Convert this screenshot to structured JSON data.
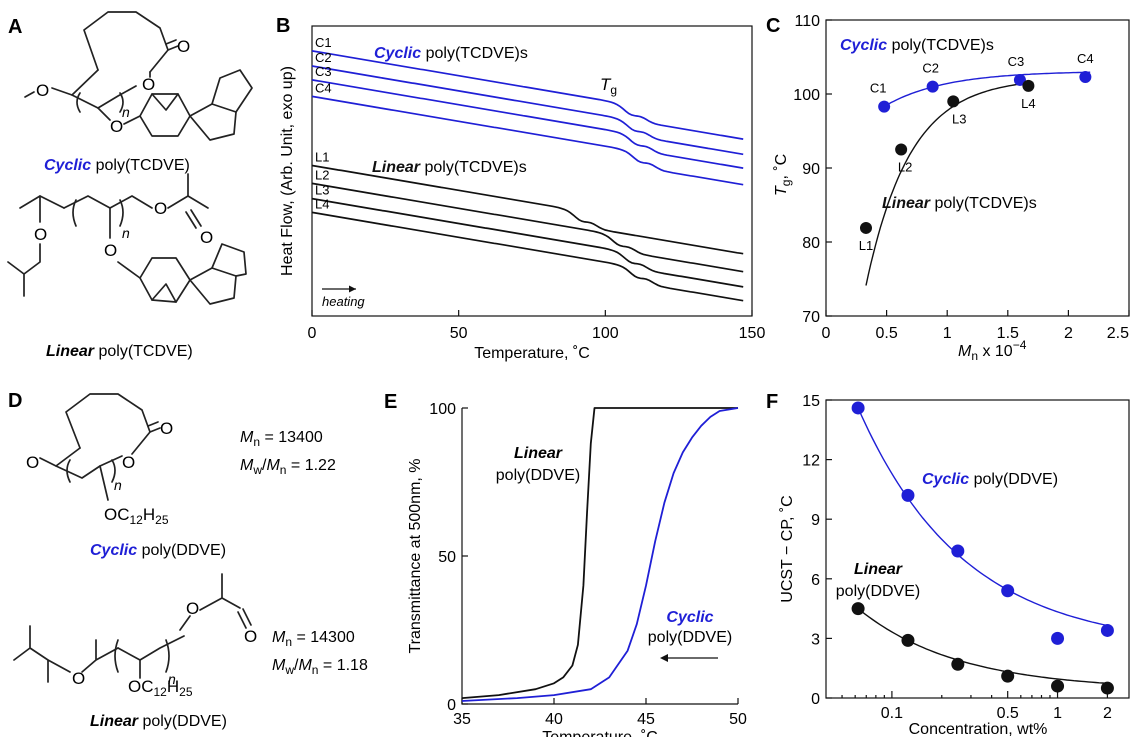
{
  "colors": {
    "cyclic": "#1f1fd6",
    "linear": "#111111",
    "ink": "#111111"
  },
  "panels": {
    "A": {
      "letter": "A",
      "cyclic_name": {
        "prefix": "Cyclic",
        "suffix": " poly(TCDVE)"
      },
      "linear_name": {
        "prefix": "Linear",
        "suffix": " poly(TCDVE)"
      },
      "atoms": {
        "O": "O",
        "n": "n"
      }
    },
    "D": {
      "letter": "D",
      "cyclic_name": {
        "prefix": "Cyclic",
        "suffix": " poly(DDVE)"
      },
      "linear_name": {
        "prefix": "Linear",
        "suffix": " poly(DDVE)"
      },
      "side_chain": {
        "pre": "OC",
        "sub": "12",
        "mid": "H",
        "sub2": "25"
      },
      "cyclic_props": {
        "mn_label": "M",
        "mn_sub": "n",
        "mn_value": " = 13400",
        "mw_label": "M",
        "mw_sub": "w",
        "mw_sep": "/",
        "mw_sub2": "n",
        "mw_value": " = 1.22"
      },
      "linear_props": {
        "mn_label": "M",
        "mn_sub": "n",
        "mn_value": " = 14300",
        "mw_label": "M",
        "mw_sub": "w",
        "mw_sep": "/",
        "mw_sub2": "n",
        "mw_value": " = 1.18"
      }
    }
  },
  "chart_data": [
    {
      "id": "B",
      "type": "line",
      "letter": "B",
      "xlabel": "Temperature, ˚C",
      "ylabel": "Heat Flow, (Arb. Unit, exo up)",
      "xlim": [
        0,
        150
      ],
      "xticks": [
        0,
        50,
        100,
        150
      ],
      "y_ticks_shown": false,
      "annotations": {
        "cyclic_group": {
          "bold": "Cyclic",
          "rest": " poly(TCDVE)s"
        },
        "linear_group": {
          "bold": "Linear",
          "rest": " poly(TCDVE)s"
        },
        "tg_main": "T",
        "tg_sub": "g",
        "heating": "heating"
      },
      "series": [
        {
          "name": "C1",
          "group": "cyclic",
          "y_start": 9.6,
          "tg": 107
        },
        {
          "name": "C2",
          "group": "cyclic",
          "y_start": 9.05,
          "tg": 108
        },
        {
          "name": "C3",
          "group": "cyclic",
          "y_start": 8.55,
          "tg": 109
        },
        {
          "name": "C4",
          "group": "cyclic",
          "y_start": 7.95,
          "tg": 110
        },
        {
          "name": "L1",
          "group": "linear",
          "y_start": 5.45,
          "tg": 90
        },
        {
          "name": "L2",
          "group": "linear",
          "y_start": 4.8,
          "tg": 103
        },
        {
          "name": "L3",
          "group": "linear",
          "y_start": 4.25,
          "tg": 107
        },
        {
          "name": "L4",
          "group": "linear",
          "y_start": 3.75,
          "tg": 109
        }
      ]
    },
    {
      "id": "C",
      "type": "scatter",
      "letter": "C",
      "xlabel_main": "M",
      "xlabel_sub": "n",
      "xlabel_rest": " x 10",
      "xlabel_sup": "−4",
      "ylabel_main": "T",
      "ylabel_sub": "g",
      "ylabel_rest": ", ˚C",
      "xlim": [
        0,
        2.5
      ],
      "ylim": [
        70,
        110
      ],
      "xticks": [
        0,
        0.5,
        1,
        1.5,
        2,
        2.5
      ],
      "xtick_labels": [
        "0",
        "0.5",
        "1",
        "1.5",
        "2",
        "2.5"
      ],
      "yticks": [
        70,
        80,
        90,
        100,
        110
      ],
      "annotations": {
        "cyclic_group": {
          "bold": "Cyclic",
          "rest": " poly(TCDVE)s"
        },
        "linear_group": {
          "bold": "Linear",
          "rest": " poly(TCDVE)s"
        }
      },
      "series": [
        {
          "group": "cyclic",
          "points": [
            {
              "label": "C1",
              "x": 0.48,
              "y": 98.3
            },
            {
              "label": "C2",
              "x": 0.88,
              "y": 101.0
            },
            {
              "label": "C3",
              "x": 1.6,
              "y": 101.9
            },
            {
              "label": "C4",
              "x": 2.14,
              "y": 102.3
            }
          ]
        },
        {
          "group": "linear",
          "points": [
            {
              "label": "L1",
              "x": 0.33,
              "y": 81.9
            },
            {
              "label": "L2",
              "x": 0.62,
              "y": 92.5
            },
            {
              "label": "L3",
              "x": 1.05,
              "y": 99.0
            },
            {
              "label": "L4",
              "x": 1.67,
              "y": 101.1
            }
          ]
        }
      ]
    },
    {
      "id": "E",
      "type": "line",
      "letter": "E",
      "xlabel": "Temperature, ˚C",
      "ylabel": "Transmittance at 500nm, %",
      "xlim": [
        35,
        50
      ],
      "ylim": [
        0,
        100
      ],
      "xticks": [
        35,
        40,
        45,
        50
      ],
      "yticks": [
        0,
        50,
        100
      ],
      "annotations": {
        "linear": {
          "bold": "Linear",
          "rest": "poly(DDVE)"
        },
        "cyclic": {
          "bold": "Cyclic",
          "rest": "poly(DDVE)"
        },
        "arrow": "cooling"
      },
      "series": [
        {
          "group": "linear",
          "x": [
            35,
            37,
            39,
            40,
            40.5,
            41,
            41.3,
            41.6,
            41.8,
            42.0,
            42.2,
            42.5,
            50
          ],
          "y": [
            2,
            3,
            5,
            7,
            9,
            13,
            20,
            40,
            65,
            88,
            100,
            100,
            100
          ]
        },
        {
          "group": "cyclic",
          "x": [
            35,
            38,
            40,
            42,
            43,
            44,
            44.5,
            45,
            45.5,
            46,
            46.5,
            47,
            47.5,
            48,
            48.5,
            49,
            50
          ],
          "y": [
            1,
            2,
            3,
            5,
            9,
            18,
            27,
            40,
            55,
            68,
            78,
            85,
            90,
            94,
            97,
            99,
            100
          ]
        }
      ]
    },
    {
      "id": "F",
      "type": "scatter",
      "letter": "F",
      "xlabel": "Concentration, wt%",
      "ylabel": "UCST − CP, ˚C",
      "x_scale": "log",
      "xlim": [
        0.04,
        2.7
      ],
      "ylim": [
        0,
        15
      ],
      "xticks": [
        0.1,
        0.5,
        1,
        2
      ],
      "xtick_labels": [
        "0.1",
        "0.5",
        "1",
        "2"
      ],
      "yticks": [
        0,
        3,
        6,
        9,
        12,
        15
      ],
      "annotations": {
        "cyclic": {
          "bold": "Cyclic",
          "rest": " poly(DDVE)"
        },
        "linear": {
          "bold": "Linear",
          "rest": "poly(DDVE)"
        }
      },
      "series": [
        {
          "group": "cyclic",
          "x": [
            0.0625,
            0.125,
            0.25,
            0.5,
            1,
            2
          ],
          "y": [
            14.6,
            10.2,
            7.4,
            5.4,
            3.0,
            3.4
          ],
          "fit": {
            "a": 2.5,
            "b": 12.1,
            "k": 0.68
          }
        },
        {
          "group": "linear",
          "x": [
            0.0625,
            0.125,
            0.25,
            0.5,
            1,
            2
          ],
          "y": [
            4.5,
            2.9,
            1.7,
            1.1,
            0.6,
            0.5
          ],
          "fit": {
            "a": 0.4,
            "b": 4.1,
            "k": 0.72
          }
        }
      ]
    }
  ]
}
